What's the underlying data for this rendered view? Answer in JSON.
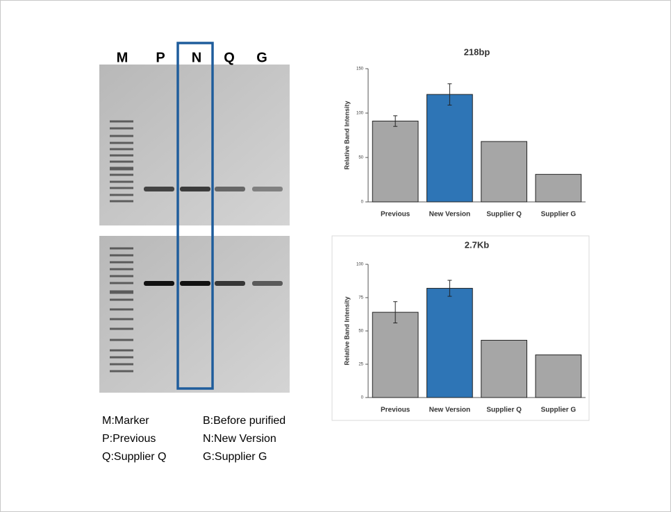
{
  "gel": {
    "lanes": [
      "M",
      "P",
      "N",
      "Q",
      "G"
    ],
    "legend": [
      "M:Marker",
      "B:Before purified",
      "P:Previous",
      "N:New Version",
      "Q:Supplier Q",
      "G:Supplier G"
    ]
  },
  "chart_data": [
    {
      "type": "bar",
      "title": "218bp",
      "y_label": "Relative Band Intensity",
      "categories": [
        "Previous",
        "New Version",
        "Supplier Q",
        "Supplier G"
      ],
      "values": [
        91,
        121,
        68,
        31
      ],
      "errors": [
        6,
        12,
        null,
        null
      ],
      "colors": [
        "#a6a6a6",
        "#2e75b6",
        "#a6a6a6",
        "#a6a6a6"
      ],
      "ylim": [
        0,
        150
      ],
      "yticks": [
        0,
        50,
        100,
        150
      ]
    },
    {
      "type": "bar",
      "title": "2.7Kb",
      "y_label": "Relative Band Intensity",
      "categories": [
        "Previous",
        "New Version",
        "Supplier Q",
        "Supplier G"
      ],
      "values": [
        64,
        82,
        43,
        32
      ],
      "errors": [
        8,
        6,
        null,
        null
      ],
      "colors": [
        "#a6a6a6",
        "#2e75b6",
        "#a6a6a6",
        "#a6a6a6"
      ],
      "ylim": [
        0,
        100
      ],
      "yticks": [
        0,
        25,
        50,
        75,
        100
      ]
    }
  ]
}
